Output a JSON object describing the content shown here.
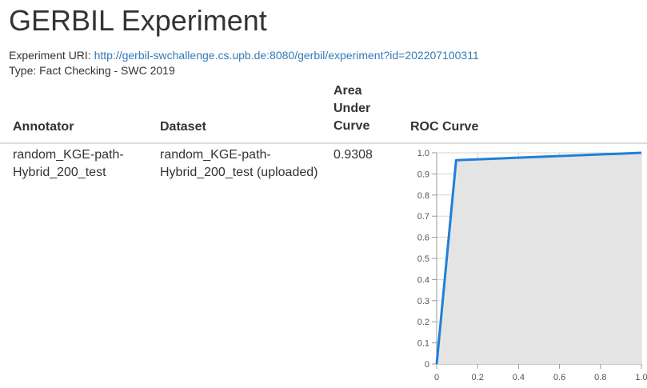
{
  "page": {
    "title": "GERBIL Experiment",
    "uri_label": "Experiment URI:",
    "uri_link": "http://gerbil-swchallenge.cs.upb.de:8080/gerbil/experiment?id=202207100311",
    "type_text": "Type: Fact Checking - SWC 2019"
  },
  "table": {
    "headers": {
      "annotator": "Annotator",
      "dataset": "Dataset",
      "auc_lines": [
        "Area",
        "Under",
        "Curve"
      ],
      "roc": "ROC Curve"
    },
    "rows": [
      {
        "annotator_lines": [
          "random_KGE-path-",
          "Hybrid_200_test"
        ],
        "dataset_lines": [
          "random_KGE-path-",
          "Hybrid_200_test (uploaded)"
        ],
        "auc": "0.9308"
      }
    ]
  },
  "chart_data": {
    "type": "area",
    "series": [
      {
        "x": [
          0,
          0.095,
          0.87,
          1.0
        ],
        "y": [
          0,
          0.965,
          0.995,
          1.0
        ]
      }
    ],
    "xlim": [
      0,
      1
    ],
    "ylim": [
      0,
      1
    ],
    "x_ticks": [
      "0",
      "0.2",
      "0.4",
      "0.6",
      "0.8",
      "1.0"
    ],
    "y_ticks": [
      "0",
      "0.1",
      "0.2",
      "0.3",
      "0.4",
      "0.5",
      "0.6",
      "0.7",
      "0.8",
      "0.9",
      "1.0"
    ],
    "grid": true,
    "line_color": "#1f7fd8",
    "fill_color": "#e4e4e4"
  }
}
